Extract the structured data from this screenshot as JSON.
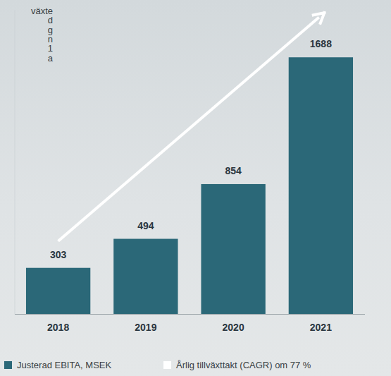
{
  "chart_data": {
    "type": "bar",
    "categories": [
      "2018",
      "2019",
      "2020",
      "2021"
    ],
    "series": [
      {
        "name": "Justerad EBITA, MSEK",
        "color": "#2b6878",
        "values": [
          303,
          494,
          854,
          1688
        ]
      }
    ],
    "ylim": [
      0,
      2000
    ],
    "yticks": [],
    "tick_labels": "x",
    "data_labels": true,
    "legend": "bottom",
    "grid": false,
    "annotations": {
      "trend": {
        "label": "Årlig tillväxttakt (CAGR) om 77 %",
        "color": "#ffffff"
      },
      "cropped_text": [
        "växte",
        "d",
        "g",
        "n",
        "1",
        "a"
      ]
    }
  }
}
